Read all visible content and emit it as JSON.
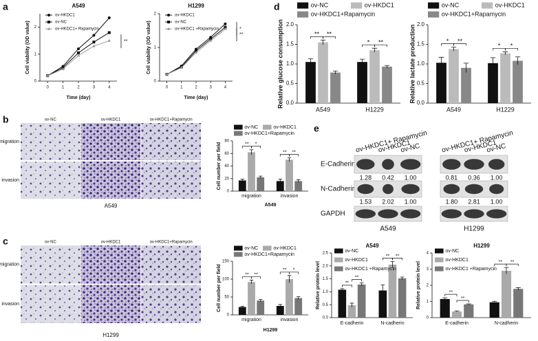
{
  "chart_data": [
    {
      "type": "line",
      "title": "A549",
      "x_label": "Time (day)",
      "y_label": "Cell viability (OD value)",
      "x": [
        0,
        1,
        2,
        3,
        4
      ],
      "xlim": [
        -0.5,
        4.5
      ],
      "xticks": [
        0,
        1,
        2,
        3,
        4
      ],
      "ylim": [
        0,
        2.5
      ],
      "yticks": [
        0,
        1,
        2
      ],
      "series": [
        {
          "name": "ov-HKDC1",
          "color": "#111111",
          "marker": "circle",
          "values": [
            0.2,
            0.55,
            1.2,
            1.7,
            2.35
          ]
        },
        {
          "name": "ov-NC",
          "color": "#111111",
          "marker": "square",
          "values": [
            0.2,
            0.5,
            1.05,
            1.45,
            1.8
          ]
        },
        {
          "name": "ov-HKDC1+ Rapamycin",
          "color": "#999999",
          "marker": "triangle",
          "values": [
            0.2,
            0.45,
            0.95,
            1.3,
            1.5
          ]
        }
      ],
      "annotations": [
        "**"
      ]
    },
    {
      "type": "line",
      "title": "H1299",
      "x_label": "Time (day)",
      "y_label": "Cell viability (OD value)",
      "x": [
        0,
        1,
        2,
        3,
        4
      ],
      "xlim": [
        -0.5,
        4.5
      ],
      "xticks": [
        0,
        1,
        2,
        3,
        4
      ],
      "ylim": [
        0,
        2
      ],
      "yticks": [
        0,
        1,
        2
      ],
      "series": [
        {
          "name": "ov-HKDC1",
          "color": "#111111",
          "marker": "circle",
          "values": [
            0.2,
            0.45,
            0.95,
            1.3,
            1.7
          ]
        },
        {
          "name": "ov-NC",
          "color": "#111111",
          "marker": "square",
          "values": [
            0.2,
            0.42,
            0.9,
            1.25,
            1.6
          ]
        },
        {
          "name": "ov-HKDC1 +Rapamycin",
          "color": "#999999",
          "marker": "triangle",
          "values": [
            0.2,
            0.4,
            0.85,
            1.2,
            1.55
          ]
        }
      ],
      "annotations": [
        "*",
        "**"
      ]
    },
    {
      "type": "bar",
      "y_label": "Relative glucose consumption",
      "categories": [
        "A549",
        "H1229"
      ],
      "ylim": [
        0,
        2
      ],
      "yticks": [
        {
          "value": 0,
          "label": "0.0"
        },
        {
          "value": 0.5,
          "label": "0.5"
        },
        {
          "value": 1,
          "label": "1.0"
        },
        {
          "value": 1.5,
          "label": "1.5"
        },
        {
          "value": 2,
          "label": "2.0"
        }
      ],
      "series": [
        {
          "name": "ov-NC",
          "color": "#111111",
          "values": [
            1.05,
            1.05
          ],
          "errors": [
            0.08,
            0.07
          ]
        },
        {
          "name": "ov-HKDC1",
          "color": "#bbbbbb",
          "values": [
            1.55,
            1.35
          ],
          "errors": [
            0.06,
            0.05
          ]
        },
        {
          "name": "ov-HKDC1+Rapamycin",
          "color": "#888888",
          "values": [
            0.78,
            0.93
          ],
          "errors": [
            0.04,
            0.03
          ]
        }
      ],
      "annotations": [
        "**",
        "**",
        "*",
        "**"
      ]
    },
    {
      "type": "bar",
      "y_label": "Relative lactate production",
      "categories": [
        "A549",
        "H1229"
      ],
      "ylim": [
        0,
        2
      ],
      "yticks": [
        {
          "value": 0,
          "label": "0.0"
        },
        {
          "value": 0.5,
          "label": "0.5"
        },
        {
          "value": 1,
          "label": "1.0"
        },
        {
          "value": 1.5,
          "label": "1.5"
        },
        {
          "value": 2,
          "label": "2.0"
        }
      ],
      "series": [
        {
          "name": "ov-NC",
          "color": "#111111",
          "values": [
            1.03,
            1.02
          ],
          "errors": [
            0.14,
            0.14
          ]
        },
        {
          "name": "ov-HKDC1",
          "color": "#bbbbbb",
          "values": [
            1.38,
            1.27
          ],
          "errors": [
            0.05,
            0.04
          ]
        },
        {
          "name": "ov-HKDC1+Rapamycin",
          "color": "#888888",
          "values": [
            0.9,
            1.08
          ],
          "errors": [
            0.12,
            0.1
          ]
        }
      ],
      "annotations": [
        "*",
        "**",
        "*",
        "*"
      ]
    },
    {
      "type": "bar",
      "y_label": "Cell number per field",
      "x_label": "A549",
      "categories": [
        "migration",
        "invasion"
      ],
      "ylim": [
        0,
        80
      ],
      "yticks": [
        0,
        20,
        40,
        60,
        80
      ],
      "series": [
        {
          "name": "ov-NC",
          "color": "#111111",
          "values": [
            17,
            16
          ],
          "errors": [
            2,
            3
          ]
        },
        {
          "name": "ov-HKDC1",
          "color": "#aaaaaa",
          "values": [
            62,
            50
          ],
          "errors": [
            4,
            3
          ]
        },
        {
          "name": "ov-HKDC1+Rapamycin",
          "color": "#777777",
          "values": [
            22,
            16
          ],
          "errors": [
            2,
            2
          ]
        }
      ],
      "annotations": [
        "**",
        "*",
        "**",
        "**"
      ]
    },
    {
      "type": "bar",
      "y_label": "Cell number per field",
      "x_label": "H1299",
      "categories": [
        "migration",
        "invasion"
      ],
      "ylim": [
        0,
        150
      ],
      "yticks": [
        0,
        50,
        100,
        150
      ],
      "series": [
        {
          "name": "ov-NC",
          "color": "#111111",
          "values": [
            22,
            25
          ],
          "errors": [
            2,
            4
          ]
        },
        {
          "name": "ov-HKDC1",
          "color": "#aaaaaa",
          "values": [
            92,
            100
          ],
          "errors": [
            5,
            10
          ]
        },
        {
          "name": "ov-HKDC1+Rapamycin",
          "color": "#777777",
          "values": [
            40,
            47
          ],
          "errors": [
            3,
            4
          ]
        }
      ],
      "annotations": [
        "**",
        "**",
        "**",
        "*"
      ]
    },
    {
      "type": "bar",
      "title": "A549",
      "y_label": "Relative protein level",
      "categories": [
        "E-cadherin",
        "N-cadherin"
      ],
      "ylim": [
        0,
        2.5
      ],
      "yticks": [
        {
          "value": 0,
          "label": "0.0"
        },
        {
          "value": 0.5,
          "label": "0.5"
        },
        {
          "value": 1,
          "label": "1.0"
        },
        {
          "value": 1.5,
          "label": "1.5"
        },
        {
          "value": 2,
          "label": "2.0"
        },
        {
          "value": 2.5,
          "label": "2.5"
        }
      ],
      "series": [
        {
          "name": "ov-NC",
          "color": "#111111",
          "values": [
            1.08,
            1.05
          ],
          "errors": [
            0.04,
            0.22
          ]
        },
        {
          "name": "ov-HKDC1",
          "color": "#aaaaaa",
          "values": [
            0.48,
            2.05
          ],
          "errors": [
            0.08,
            0.12
          ]
        },
        {
          "name": "ov-HKDC1 +Rapamycin",
          "color": "#777777",
          "values": [
            1.28,
            1.52
          ],
          "errors": [
            0.06,
            0.05
          ]
        }
      ],
      "annotations": [
        "**",
        "**",
        "**",
        "**"
      ]
    },
    {
      "type": "bar",
      "title": "H1299",
      "y_label": "Relative protein level",
      "categories": [
        "E-cadherin",
        "N-cadherin"
      ],
      "ylim": [
        0,
        4
      ],
      "yticks": [
        0,
        1,
        2,
        3,
        4
      ],
      "series": [
        {
          "name": "ov-NC",
          "color": "#111111",
          "values": [
            1.15,
            0.95
          ],
          "errors": [
            0.08,
            0.06
          ]
        },
        {
          "name": "ov-HKDC1",
          "color": "#aaaaaa",
          "values": [
            0.38,
            2.9
          ],
          "errors": [
            0.04,
            0.2
          ]
        },
        {
          "name": "ov-HKDC1 +Rapamycin",
          "color": "#777777",
          "values": [
            0.82,
            1.78
          ],
          "errors": [
            0.03,
            0.08
          ]
        }
      ],
      "annotations": [
        "**",
        "**",
        "**",
        "**"
      ]
    }
  ],
  "figure": {
    "panel_labels": [
      "a",
      "b",
      "c",
      "d",
      "e"
    ],
    "micrographs": [
      {
        "columns": [
          "ov-NC",
          "ov-HKDC1",
          "ov-HKDC1+Rapamycin"
        ],
        "rows": [
          "migration",
          "invasion"
        ],
        "caption": "A549"
      },
      {
        "columns": [
          "ov-NC",
          "ov-HKDC1",
          "ov-HKDC1+Rapamycin"
        ],
        "rows": [
          "migration",
          "invasion"
        ],
        "caption": "H1299"
      }
    ],
    "blot": {
      "rows": [
        "E-Cadherin",
        "N-Cadherin",
        "GAPDH"
      ],
      "groups": [
        {
          "lanes": [
            "ov-HKDC1+ Rapamycin",
            "ov-HKDC1",
            "ov-NC"
          ],
          "quant": [
            [
              "1.28",
              "0.42",
              "1.00"
            ],
            [
              "1.53",
              "2.02",
              "1.00"
            ]
          ],
          "caption": "A549"
        },
        {
          "lanes": [
            "ov-HKDC1+ Rapamycin",
            "ov-HKDC1",
            "ov-NC"
          ],
          "quant": [
            [
              "0.81",
              "0.36",
              "1.00"
            ],
            [
              "1.80",
              "2.81",
              "1.00"
            ]
          ],
          "caption": "H1299"
        }
      ]
    }
  }
}
